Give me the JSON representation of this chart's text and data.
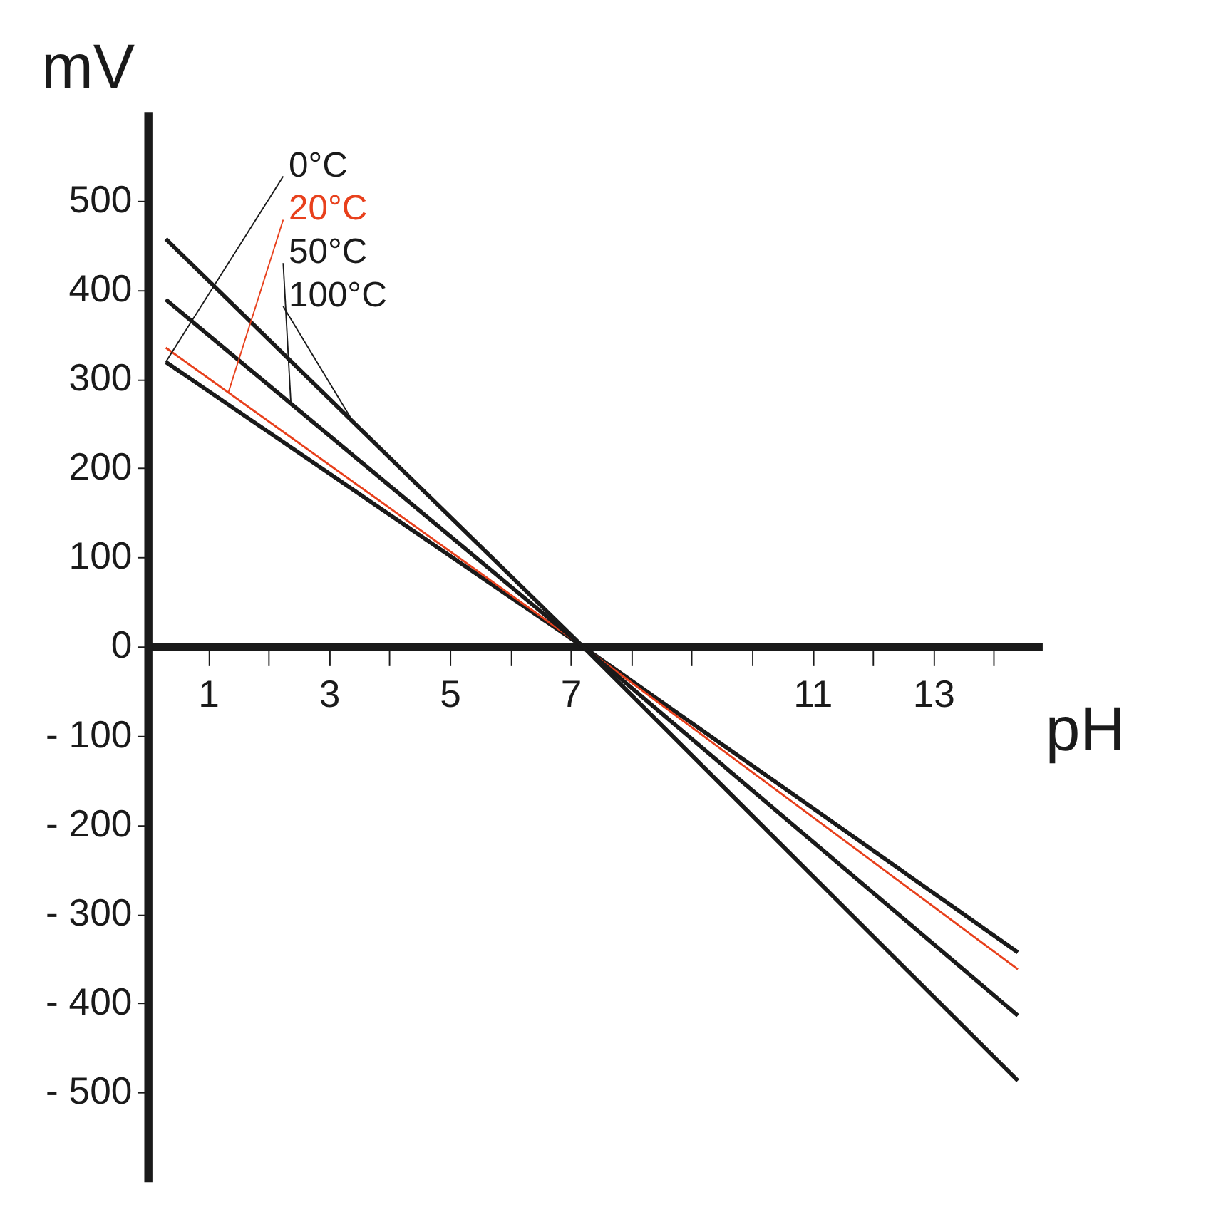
{
  "chart_data": {
    "type": "line",
    "xlabel": "pH",
    "ylabel": "mV",
    "xlim": [
      0,
      14.8
    ],
    "ylim": [
      -600,
      600
    ],
    "xticks": [
      1,
      {
        "value": 2,
        "label": null
      },
      3,
      {
        "value": 4,
        "label": null
      },
      5,
      {
        "value": 6,
        "label": null
      },
      7,
      {
        "value": 8,
        "label": null
      },
      {
        "value": 9,
        "label": null
      },
      {
        "value": 10,
        "label": null
      },
      11,
      {
        "value": 12,
        "label": null
      },
      13,
      {
        "value": 14,
        "label": null
      }
    ],
    "yticks": [
      500,
      400,
      300,
      200,
      100,
      0,
      {
        "value": -100,
        "label": "- 100"
      },
      {
        "value": -200,
        "label": "- 200"
      },
      {
        "value": -300,
        "label": "- 300"
      },
      {
        "value": -400,
        "label": "- 400"
      },
      {
        "value": -500,
        "label": "- 500"
      }
    ],
    "grid": false,
    "legend": false,
    "marker": "none",
    "line_style": "solid",
    "x": [
      0.3,
      7.2,
      14.4
    ],
    "series": [
      {
        "name": "0°C",
        "color": "#1a1a1a",
        "values": [
          319,
          0,
          -343
        ]
      },
      {
        "name": "20°C",
        "color": "#e8401c",
        "values": [
          335,
          0,
          -362
        ]
      },
      {
        "name": "50°C",
        "color": "#1a1a1a",
        "values": [
          389,
          0,
          -414
        ]
      },
      {
        "name": "100°C",
        "color": "#1a1a1a",
        "values": [
          457,
          0,
          -487
        ]
      }
    ]
  }
}
